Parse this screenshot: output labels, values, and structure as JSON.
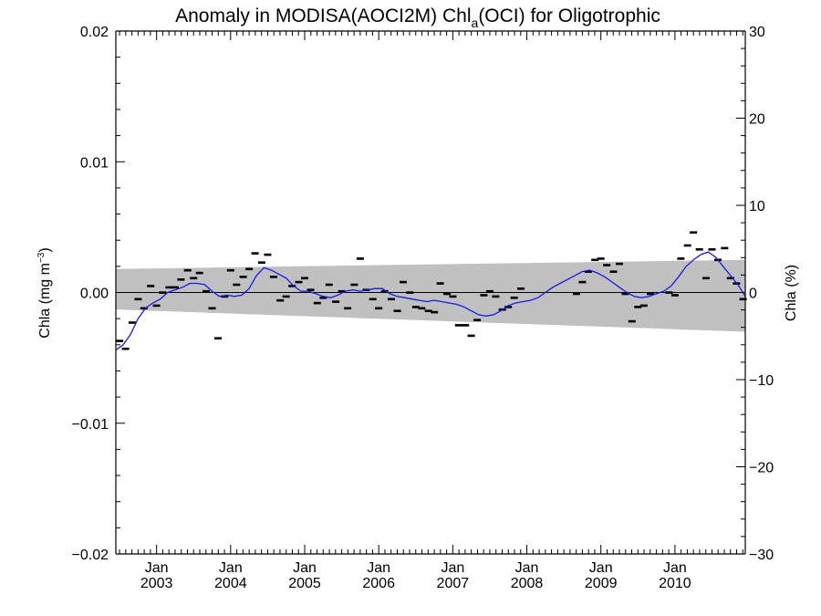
{
  "chart_data": {
    "type": "scatter",
    "title": {
      "prefix": "Anomaly in MODISA(AOCI2M) Chl",
      "subscript": "a",
      "suffix": "(OCI) for Oligotrophic"
    },
    "ylabel_left": {
      "text": "Chla (mg m",
      "superscript": "−3",
      "close": ")"
    },
    "ylabel_right": "Chla (%)",
    "ylim": [
      -0.02,
      0.02
    ],
    "ylim_right": [
      -30,
      30
    ],
    "xlim": [
      2002.45,
      2010.95
    ],
    "y_ticks": [
      {
        "value": 0.02,
        "label": "0.02"
      },
      {
        "value": 0.01,
        "label": "0.01"
      },
      {
        "value": 0.0,
        "label": "0.00"
      },
      {
        "value": -0.01,
        "label": "−0.01"
      },
      {
        "value": -0.02,
        "label": "−0.02"
      }
    ],
    "y_ticks_right": [
      {
        "value": 30,
        "label": "30"
      },
      {
        "value": 20,
        "label": "20"
      },
      {
        "value": 10,
        "label": "10"
      },
      {
        "value": 0,
        "label": "0"
      },
      {
        "value": -10,
        "label": "−10"
      },
      {
        "value": -20,
        "label": "−20"
      },
      {
        "value": -30,
        "label": "−30"
      }
    ],
    "x_ticks": [
      {
        "value": 2003.0,
        "month": "Jan",
        "year": "2003"
      },
      {
        "value": 2004.0,
        "month": "Jan",
        "year": "2004"
      },
      {
        "value": 2005.0,
        "month": "Jan",
        "year": "2005"
      },
      {
        "value": 2006.0,
        "month": "Jan",
        "year": "2006"
      },
      {
        "value": 2007.0,
        "month": "Jan",
        "year": "2007"
      },
      {
        "value": 2008.0,
        "month": "Jan",
        "year": "2008"
      },
      {
        "value": 2009.0,
        "month": "Jan",
        "year": "2009"
      },
      {
        "value": 2010.0,
        "month": "Jan",
        "year": "2010"
      }
    ],
    "band": {
      "color": "#c0c0c0",
      "start": {
        "x": 2002.45,
        "upper": 0.0018,
        "lower": -0.0013
      },
      "end": {
        "x": 2010.95,
        "upper": 0.0025,
        "lower": -0.003
      }
    },
    "zero_line": {
      "y": 0.0,
      "color": "#000000"
    },
    "monthly_points": {
      "color": "#000000",
      "x": [
        2002.5,
        2002.58,
        2002.67,
        2002.75,
        2002.83,
        2002.92,
        2003.0,
        2003.08,
        2003.17,
        2003.25,
        2003.33,
        2003.42,
        2003.5,
        2003.58,
        2003.67,
        2003.75,
        2003.83,
        2003.92,
        2004.0,
        2004.08,
        2004.17,
        2004.25,
        2004.33,
        2004.42,
        2004.5,
        2004.58,
        2004.67,
        2004.75,
        2004.83,
        2004.92,
        2005.0,
        2005.08,
        2005.17,
        2005.25,
        2005.33,
        2005.42,
        2005.5,
        2005.58,
        2005.67,
        2005.75,
        2005.83,
        2005.92,
        2006.0,
        2006.08,
        2006.17,
        2006.25,
        2006.33,
        2006.42,
        2006.5,
        2006.58,
        2006.67,
        2006.75,
        2006.83,
        2006.92,
        2007.0,
        2007.08,
        2007.17,
        2007.25,
        2007.33,
        2007.42,
        2007.5,
        2007.58,
        2007.67,
        2007.75,
        2007.83,
        2007.92,
        2008.67,
        2008.75,
        2008.83,
        2008.92,
        2009.0,
        2009.08,
        2009.17,
        2009.25,
        2009.33,
        2009.42,
        2009.5,
        2009.58,
        2009.67,
        2009.92,
        2010.0,
        2010.08,
        2010.17,
        2010.25,
        2010.33,
        2010.42,
        2010.5,
        2010.58,
        2010.67,
        2010.75,
        2010.83,
        2010.92
      ],
      "y": [
        -0.0037,
        -0.0043,
        -0.0023,
        -0.0005,
        -0.0012,
        0.0005,
        -0.001,
        0.0,
        0.0004,
        0.0004,
        0.001,
        0.0017,
        0.0011,
        0.0015,
        0.0001,
        -0.0012,
        -0.0035,
        -0.0003,
        0.0017,
        0.0006,
        0.0012,
        0.0018,
        0.003,
        0.0023,
        0.0029,
        0.0012,
        -0.0006,
        -0.0003,
        0.0005,
        0.0008,
        0.0011,
        0.0002,
        -0.0008,
        -0.0004,
        0.0006,
        -0.0007,
        0.0001,
        -0.0012,
        0.0006,
        0.0026,
        0.0002,
        -0.0005,
        -0.0012,
        0.0001,
        -0.0005,
        -0.0014,
        0.0008,
        0.0,
        -0.0011,
        -0.0012,
        -0.0014,
        -0.0015,
        0.0007,
        -0.0001,
        -0.0003,
        -0.0025,
        -0.0025,
        -0.0033,
        -0.0021,
        -0.0002,
        0.0001,
        -0.0003,
        -0.0013,
        -0.0011,
        -0.0004,
        0.0003,
        -0.0001,
        0.0008,
        0.0016,
        0.0025,
        0.0026,
        0.0021,
        0.0016,
        0.0022,
        -0.0001,
        -0.0022,
        -0.0011,
        -0.001,
        -0.0001,
        0.0,
        -0.0002,
        0.0026,
        0.0036,
        0.0046,
        0.0033,
        0.0011,
        0.0033,
        0.0025,
        0.0034,
        0.0011,
        0.0007,
        -0.0005
      ]
    },
    "smoothed_line": {
      "color": "#1a1ae6",
      "x": [
        2002.45,
        2002.55,
        2002.65,
        2002.75,
        2002.85,
        2002.95,
        2003.05,
        2003.15,
        2003.25,
        2003.35,
        2003.45,
        2003.55,
        2003.65,
        2003.75,
        2003.85,
        2003.95,
        2004.05,
        2004.15,
        2004.25,
        2004.35,
        2004.45,
        2004.55,
        2004.65,
        2004.75,
        2004.85,
        2004.95,
        2005.05,
        2005.15,
        2005.25,
        2005.35,
        2005.45,
        2005.55,
        2005.65,
        2005.75,
        2005.85,
        2005.95,
        2006.05,
        2006.15,
        2006.25,
        2006.35,
        2006.45,
        2006.55,
        2006.65,
        2006.75,
        2006.85,
        2006.95,
        2007.05,
        2007.15,
        2007.25,
        2007.35,
        2007.45,
        2007.55,
        2007.65,
        2007.75,
        2007.85,
        2007.95,
        2008.05,
        2008.15,
        2008.25,
        2008.35,
        2008.45,
        2008.55,
        2008.65,
        2008.75,
        2008.85,
        2008.95,
        2009.05,
        2009.15,
        2009.25,
        2009.35,
        2009.45,
        2009.55,
        2009.65,
        2009.75,
        2009.85,
        2009.95,
        2010.05,
        2010.15,
        2010.25,
        2010.35,
        2010.45,
        2010.55,
        2010.65,
        2010.75,
        2010.85,
        2010.95
      ],
      "y": [
        -0.0044,
        -0.004,
        -0.0032,
        -0.002,
        -0.0012,
        -0.0008,
        -0.0005,
        0.0,
        0.0002,
        0.0004,
        0.0007,
        0.0007,
        0.0006,
        0.0001,
        -0.0003,
        -0.0002,
        -0.0003,
        -0.0002,
        0.0003,
        0.0013,
        0.0019,
        0.0017,
        0.0014,
        0.0011,
        0.0005,
        0.0001,
        0.0001,
        -0.0001,
        -0.0003,
        -0.0004,
        -0.0002,
        0.0001,
        0.0002,
        0.0001,
        0.0002,
        0.0003,
        0.0003,
        -0.0001,
        -0.0003,
        -0.0004,
        -0.0005,
        -0.0006,
        -0.0007,
        -0.0006,
        -0.0007,
        -0.0008,
        -0.0009,
        -0.0011,
        -0.0014,
        -0.0017,
        -0.0018,
        -0.0017,
        -0.0014,
        -0.001,
        -0.0008,
        -0.0007,
        -0.0006,
        -0.0004,
        0.0,
        0.0004,
        0.0007,
        0.001,
        0.0013,
        0.0016,
        0.0017,
        0.0015,
        0.0012,
        0.0008,
        0.0004,
        0.0,
        -0.0003,
        -0.0004,
        -0.0003,
        -0.0001,
        0.0001,
        0.0005,
        0.0012,
        0.002,
        0.0025,
        0.0029,
        0.0031,
        0.0027,
        0.002,
        0.0013,
        0.0006,
        -0.0003
      ]
    }
  }
}
